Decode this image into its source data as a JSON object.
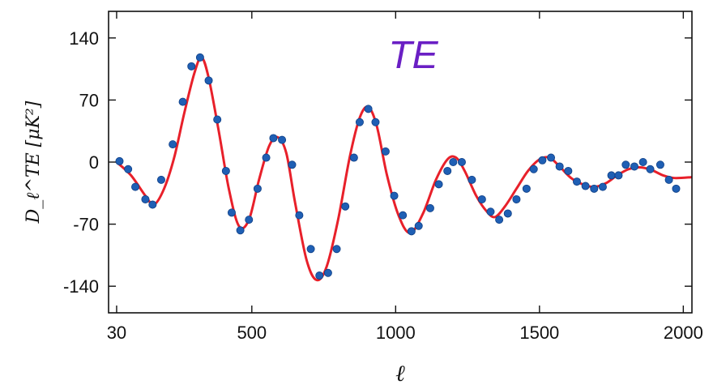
{
  "chart_data": {
    "type": "scatter",
    "annotation": "TE",
    "xlabel": "ℓ",
    "ylabel": "D_ℓ^TE [μK²]",
    "xlim": [
      2,
      2030
    ],
    "ylim": [
      -170,
      170
    ],
    "x_ticks": [
      30,
      500,
      1000,
      1500,
      2000
    ],
    "y_ticks": [
      140,
      70,
      0,
      -70,
      -140
    ],
    "grid": false,
    "colors": {
      "model": "#e8202a",
      "points": "#1f5fb4",
      "annotation": "#6a1fc4",
      "axes": "#111111"
    },
    "series": [
      {
        "type": "line",
        "points": [
          [
            30,
            0
          ],
          [
            80,
            -15
          ],
          [
            130,
            -38
          ],
          [
            160,
            -48
          ],
          [
            195,
            -30
          ],
          [
            230,
            5
          ],
          [
            265,
            55
          ],
          [
            300,
            100
          ],
          [
            325,
            118
          ],
          [
            350,
            95
          ],
          [
            385,
            35
          ],
          [
            420,
            -30
          ],
          [
            455,
            -72
          ],
          [
            490,
            -65
          ],
          [
            525,
            -20
          ],
          [
            560,
            18
          ],
          [
            590,
            28
          ],
          [
            620,
            10
          ],
          [
            650,
            -45
          ],
          [
            690,
            -110
          ],
          [
            725,
            -133
          ],
          [
            760,
            -118
          ],
          [
            800,
            -65
          ],
          [
            840,
            5
          ],
          [
            875,
            50
          ],
          [
            905,
            62
          ],
          [
            935,
            40
          ],
          [
            970,
            -15
          ],
          [
            1010,
            -60
          ],
          [
            1050,
            -80
          ],
          [
            1095,
            -58
          ],
          [
            1140,
            -20
          ],
          [
            1180,
            3
          ],
          [
            1210,
            5
          ],
          [
            1240,
            -10
          ],
          [
            1280,
            -38
          ],
          [
            1315,
            -55
          ],
          [
            1345,
            -62
          ],
          [
            1380,
            -50
          ],
          [
            1420,
            -30
          ],
          [
            1460,
            -10
          ],
          [
            1500,
            3
          ],
          [
            1535,
            5
          ],
          [
            1570,
            -5
          ],
          [
            1610,
            -18
          ],
          [
            1650,
            -25
          ],
          [
            1690,
            -28
          ],
          [
            1730,
            -24
          ],
          [
            1770,
            -15
          ],
          [
            1810,
            -8
          ],
          [
            1850,
            -6
          ],
          [
            1890,
            -9
          ],
          [
            1930,
            -15
          ],
          [
            1970,
            -18
          ],
          [
            2030,
            -17
          ]
        ]
      },
      {
        "type": "scatter",
        "points": [
          [
            40,
            1
          ],
          [
            70,
            -8
          ],
          [
            95,
            -28
          ],
          [
            130,
            -42
          ],
          [
            155,
            -48
          ],
          [
            185,
            -20
          ],
          [
            225,
            20
          ],
          [
            260,
            68
          ],
          [
            290,
            108
          ],
          [
            320,
            118
          ],
          [
            350,
            92
          ],
          [
            380,
            48
          ],
          [
            410,
            -10
          ],
          [
            430,
            -57
          ],
          [
            460,
            -77
          ],
          [
            490,
            -65
          ],
          [
            520,
            -30
          ],
          [
            550,
            5
          ],
          [
            575,
            27
          ],
          [
            605,
            25
          ],
          [
            640,
            -3
          ],
          [
            665,
            -60
          ],
          [
            705,
            -98
          ],
          [
            735,
            -128
          ],
          [
            765,
            -125
          ],
          [
            795,
            -98
          ],
          [
            825,
            -50
          ],
          [
            855,
            5
          ],
          [
            875,
            45
          ],
          [
            905,
            60
          ],
          [
            930,
            45
          ],
          [
            965,
            12
          ],
          [
            995,
            -38
          ],
          [
            1025,
            -60
          ],
          [
            1055,
            -78
          ],
          [
            1080,
            -72
          ],
          [
            1120,
            -52
          ],
          [
            1150,
            -25
          ],
          [
            1180,
            -10
          ],
          [
            1200,
            0
          ],
          [
            1230,
            0
          ],
          [
            1265,
            -20
          ],
          [
            1300,
            -42
          ],
          [
            1330,
            -56
          ],
          [
            1360,
            -65
          ],
          [
            1390,
            -58
          ],
          [
            1420,
            -42
          ],
          [
            1455,
            -30
          ],
          [
            1480,
            -8
          ],
          [
            1510,
            2
          ],
          [
            1540,
            5
          ],
          [
            1570,
            -5
          ],
          [
            1600,
            -10
          ],
          [
            1630,
            -22
          ],
          [
            1660,
            -27
          ],
          [
            1690,
            -30
          ],
          [
            1720,
            -28
          ],
          [
            1750,
            -15
          ],
          [
            1775,
            -15
          ],
          [
            1800,
            -3
          ],
          [
            1830,
            -5
          ],
          [
            1860,
            0
          ],
          [
            1885,
            -8
          ],
          [
            1920,
            -3
          ],
          [
            1950,
            -20
          ],
          [
            1975,
            -30
          ]
        ]
      }
    ]
  }
}
